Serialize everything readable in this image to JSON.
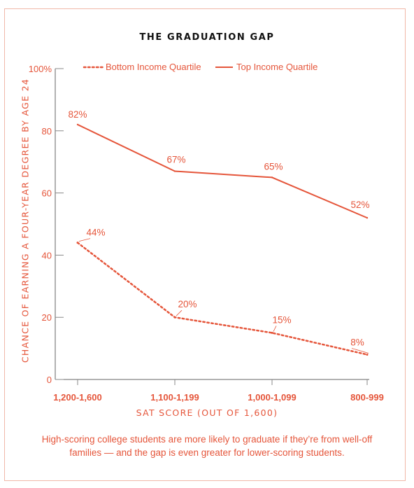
{
  "chart_data": {
    "type": "line",
    "title": "THE GRADUATION GAP",
    "xlabel": "SAT SCORE (OUT OF 1,600)",
    "ylabel": "CHANCE OF EARNING A FOUR-YEAR DEGREE BY AGE 24",
    "categories": [
      "1,200-1,600",
      "1,100-1,199",
      "1,000-1,099",
      "800-999"
    ],
    "ylim": [
      0,
      100
    ],
    "yticks": [
      "0",
      "20",
      "40",
      "60",
      "80",
      "100%"
    ],
    "series": [
      {
        "name": "Bottom Income Quartile",
        "values": [
          44,
          20,
          15,
          8
        ],
        "labels": [
          "44%",
          "20%",
          "15%",
          "8%"
        ],
        "style": "dotted"
      },
      {
        "name": "Top Income Quartile",
        "values": [
          82,
          67,
          65,
          52
        ],
        "labels": [
          "82%",
          "67%",
          "65%",
          "52%"
        ],
        "style": "solid"
      }
    ],
    "grid": false,
    "legend_position": "top"
  },
  "caption": "High-scoring college students are more likely to graduate if they’re from well-off families — and the gap is even greater for lower-scoring students.",
  "colors": {
    "accent": "#e5553a",
    "title": "#111111",
    "border": "#f0b8a8"
  }
}
